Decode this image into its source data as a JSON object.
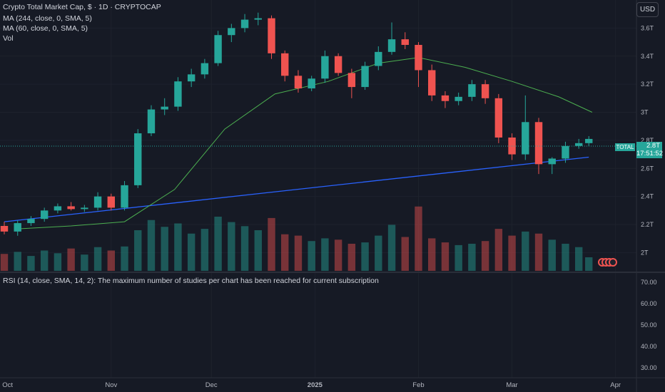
{
  "header": {
    "title": "Crypto Total Market Cap, $ · 1D · CRYPTOCAP",
    "studies": [
      "MA (244, close, 0, SMA, 5)",
      "MA (60, close, 0, SMA, 5)",
      "Vol"
    ],
    "currency": "USD"
  },
  "rsi_pane": {
    "message": "RSI (14, close, SMA, 14, 2): The maximum number of studies per chart has been reached for current subscription",
    "ticks": [
      "70.00",
      "60.00",
      "50.00",
      "40.00",
      "30.00"
    ]
  },
  "price_axis": {
    "ticks": [
      "3.6T",
      "3.4T",
      "3.2T",
      "3T",
      "2.8T",
      "2.6T",
      "2.4T",
      "2.2T",
      "2T"
    ]
  },
  "last_price": {
    "symbol_tag": "TOTAL",
    "value": "2.8T",
    "countdown": "17:51:52"
  },
  "time_axis": {
    "labels": [
      "Oct",
      "Nov",
      "Dec",
      "2025",
      "Feb",
      "Mar",
      "Apr"
    ]
  },
  "colors": {
    "up": "#26a69a",
    "down": "#ef5350",
    "ma244": "#2962ff",
    "ma60": "#4caf50",
    "background": "#161a25"
  },
  "chart_data": {
    "type": "candlestick",
    "unit": "T USD",
    "ma244": {
      "x": [
        "2024-09-30",
        "2025-03-24"
      ],
      "y": [
        2.22,
        2.68
      ]
    },
    "ma60": {
      "x": [
        "2024-10-05",
        "2024-10-20",
        "2024-11-05",
        "2024-11-20",
        "2024-12-05",
        "2024-12-20",
        "2025-01-05",
        "2025-01-20",
        "2025-02-01",
        "2025-02-15",
        "2025-03-01",
        "2025-03-15",
        "2025-03-25"
      ],
      "y": [
        2.17,
        2.19,
        2.22,
        2.45,
        2.88,
        3.13,
        3.22,
        3.35,
        3.39,
        3.32,
        3.22,
        3.11,
        3.0
      ]
    },
    "candles": {
      "dates": [
        "2024-09-30",
        "2024-10-04",
        "2024-10-08",
        "2024-10-12",
        "2024-10-16",
        "2024-10-20",
        "2024-10-24",
        "2024-10-28",
        "2024-11-01",
        "2024-11-05",
        "2024-11-09",
        "2024-11-13",
        "2024-11-17",
        "2024-11-21",
        "2024-11-25",
        "2024-11-29",
        "2024-12-03",
        "2024-12-07",
        "2024-12-11",
        "2024-12-15",
        "2024-12-19",
        "2024-12-23",
        "2024-12-27",
        "2024-12-31",
        "2025-01-04",
        "2025-01-08",
        "2025-01-12",
        "2025-01-16",
        "2025-01-20",
        "2025-01-24",
        "2025-01-28",
        "2025-02-01",
        "2025-02-05",
        "2025-02-09",
        "2025-02-13",
        "2025-02-17",
        "2025-02-21",
        "2025-02-25",
        "2025-03-01",
        "2025-03-05",
        "2025-03-09",
        "2025-03-13",
        "2025-03-17",
        "2025-03-21",
        "2025-03-24"
      ],
      "open": [
        2.19,
        2.15,
        2.21,
        2.24,
        2.3,
        2.33,
        2.31,
        2.32,
        2.4,
        2.32,
        2.48,
        2.85,
        3.02,
        3.04,
        3.22,
        3.27,
        3.35,
        3.55,
        3.6,
        3.66,
        3.67,
        3.42,
        3.26,
        3.17,
        3.24,
        3.4,
        3.28,
        3.18,
        3.33,
        3.43,
        3.52,
        3.48,
        3.3,
        3.12,
        3.08,
        3.11,
        3.2,
        3.1,
        2.82,
        2.7,
        2.93,
        2.63,
        2.67,
        2.76,
        2.78
      ],
      "close": [
        2.15,
        2.21,
        2.24,
        2.3,
        2.33,
        2.31,
        2.32,
        2.4,
        2.32,
        2.48,
        2.85,
        3.02,
        3.04,
        3.22,
        3.27,
        3.35,
        3.55,
        3.6,
        3.66,
        3.67,
        3.42,
        3.26,
        3.17,
        3.24,
        3.4,
        3.28,
        3.18,
        3.33,
        3.43,
        3.52,
        3.48,
        3.3,
        3.12,
        3.08,
        3.11,
        3.2,
        3.1,
        2.82,
        2.7,
        2.93,
        2.63,
        2.67,
        2.76,
        2.78,
        2.81
      ],
      "high": [
        2.22,
        2.23,
        2.26,
        2.32,
        2.35,
        2.36,
        2.34,
        2.43,
        2.42,
        2.51,
        2.88,
        3.05,
        3.1,
        3.25,
        3.31,
        3.38,
        3.58,
        3.63,
        3.7,
        3.71,
        3.69,
        3.44,
        3.3,
        3.26,
        3.44,
        3.42,
        3.31,
        3.36,
        3.47,
        3.64,
        3.57,
        3.5,
        3.34,
        3.15,
        3.14,
        3.23,
        3.23,
        3.13,
        2.85,
        3.12,
        2.96,
        2.68,
        2.79,
        2.81,
        2.83
      ],
      "low": [
        2.13,
        2.12,
        2.19,
        2.22,
        2.28,
        2.3,
        2.29,
        2.3,
        2.3,
        2.3,
        2.46,
        2.83,
        2.98,
        3.01,
        3.18,
        3.24,
        3.33,
        3.5,
        3.57,
        3.62,
        3.38,
        3.22,
        3.14,
        3.15,
        3.21,
        3.26,
        3.1,
        3.16,
        3.3,
        3.41,
        3.45,
        3.18,
        3.08,
        3.03,
        3.05,
        3.08,
        3.06,
        2.78,
        2.66,
        2.66,
        2.56,
        2.56,
        2.64,
        2.74,
        2.76
      ],
      "volume": [
        0.25,
        0.28,
        0.22,
        0.3,
        0.26,
        0.33,
        0.24,
        0.35,
        0.3,
        0.36,
        0.6,
        0.75,
        0.65,
        0.7,
        0.55,
        0.62,
        0.8,
        0.72,
        0.66,
        0.6,
        0.78,
        0.54,
        0.52,
        0.44,
        0.48,
        0.46,
        0.4,
        0.42,
        0.52,
        0.68,
        0.5,
        0.95,
        0.48,
        0.42,
        0.38,
        0.4,
        0.44,
        0.62,
        0.52,
        0.58,
        0.55,
        0.46,
        0.4,
        0.35,
        0.2
      ]
    },
    "ylim": [
      1.87,
      3.8
    ],
    "xlim": [
      "2024-09-30",
      "2025-03-31"
    ]
  }
}
